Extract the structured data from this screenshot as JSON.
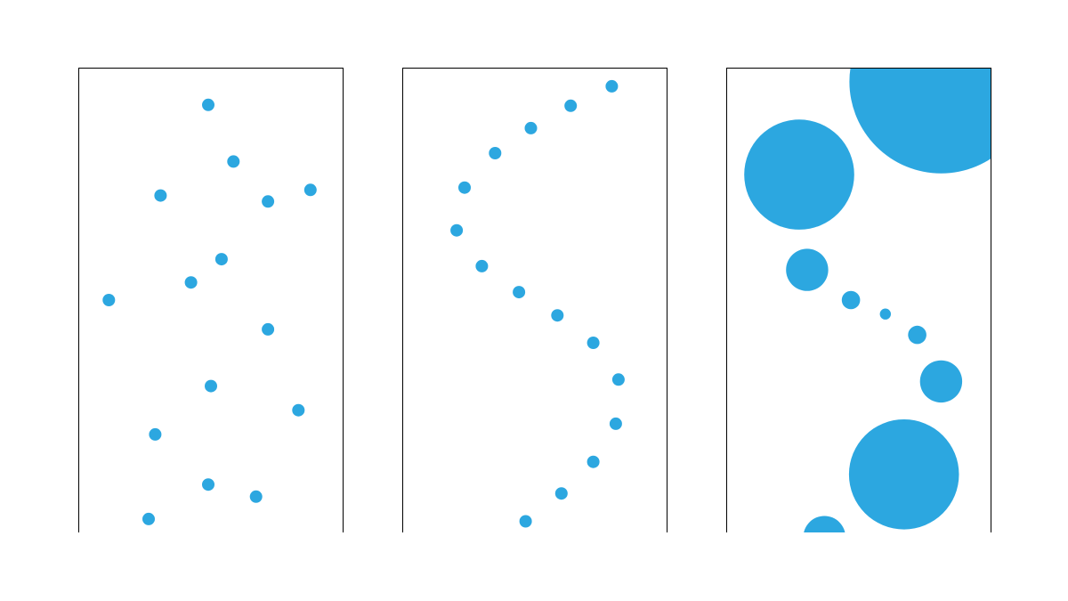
{
  "colors": {
    "point": "#2ca7e0",
    "frame": "#000000",
    "background": "#ffffff"
  },
  "chart_data": [
    {
      "type": "scatter",
      "title": "",
      "xlim": [
        0,
        100
      ],
      "ylim": [
        0,
        100
      ],
      "grid": false,
      "legend": "none",
      "points": [
        {
          "x": 49,
          "y": 92
        },
        {
          "x": 58.5,
          "y": 79.8
        },
        {
          "x": 31,
          "y": 72.5
        },
        {
          "x": 71.5,
          "y": 71.2
        },
        {
          "x": 87.5,
          "y": 73.7
        },
        {
          "x": 54,
          "y": 58.8
        },
        {
          "x": 42.5,
          "y": 53.8
        },
        {
          "x": 11.5,
          "y": 50
        },
        {
          "x": 71.5,
          "y": 43.7
        },
        {
          "x": 50,
          "y": 31.5
        },
        {
          "x": 83,
          "y": 26.3
        },
        {
          "x": 29,
          "y": 21.1
        },
        {
          "x": 49,
          "y": 10.3
        },
        {
          "x": 67,
          "y": 7.7
        },
        {
          "x": 26.5,
          "y": 2.9
        }
      ]
    },
    {
      "type": "scatter",
      "title": "",
      "xlim": [
        0,
        100
      ],
      "ylim": [
        0,
        100
      ],
      "grid": false,
      "legend": "none",
      "points": [
        {
          "x": 79,
          "y": 96
        },
        {
          "x": 63.5,
          "y": 91.8
        },
        {
          "x": 48.5,
          "y": 87
        },
        {
          "x": 35,
          "y": 81.6
        },
        {
          "x": 23.5,
          "y": 74.2
        },
        {
          "x": 20.5,
          "y": 65
        },
        {
          "x": 30,
          "y": 57.3
        },
        {
          "x": 44,
          "y": 51.7
        },
        {
          "x": 58.5,
          "y": 46.7
        },
        {
          "x": 72,
          "y": 40.8
        },
        {
          "x": 81.5,
          "y": 32.9
        },
        {
          "x": 80.5,
          "y": 23.4
        },
        {
          "x": 72,
          "y": 15.2
        },
        {
          "x": 60,
          "y": 8.4
        },
        {
          "x": 46.5,
          "y": 2.4
        }
      ]
    },
    {
      "type": "scatter",
      "title": "",
      "xlim": [
        0,
        100
      ],
      "ylim": [
        0,
        100
      ],
      "grid": false,
      "legend": "none",
      "size_scale": [
        0,
        100
      ],
      "points": [
        {
          "x": 81,
          "y": 97,
          "size": 100
        },
        {
          "x": 27.5,
          "y": 77,
          "size": 60
        },
        {
          "x": 30.5,
          "y": 56.5,
          "size": 23
        },
        {
          "x": 47,
          "y": 50,
          "size": 10
        },
        {
          "x": 60,
          "y": 47,
          "size": 6
        },
        {
          "x": 72,
          "y": 42.5,
          "size": 10
        },
        {
          "x": 81,
          "y": 32.5,
          "size": 23
        },
        {
          "x": 67,
          "y": 12.5,
          "size": 60
        },
        {
          "x": 37,
          "y": -1,
          "size": 23
        }
      ]
    }
  ]
}
